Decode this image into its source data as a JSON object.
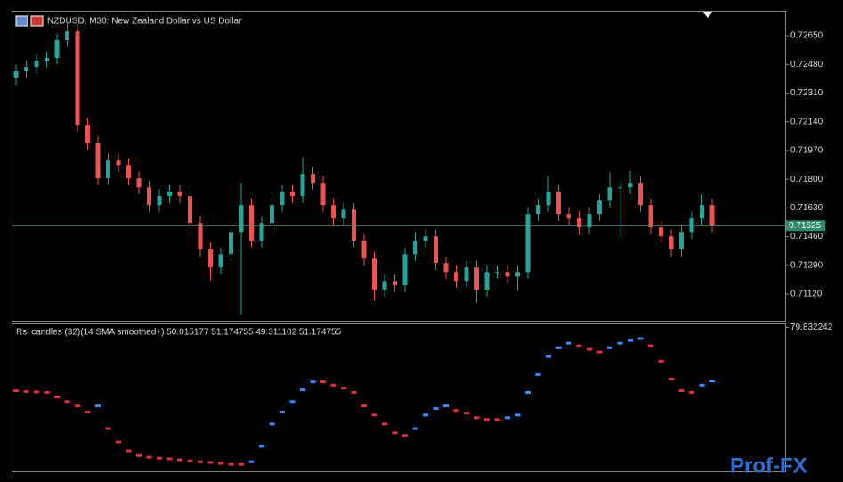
{
  "chart_data": [
    {
      "type": "candlestick",
      "title": "NZDUSD, M30:  New Zealand Dollar vs US Dollar",
      "open": [
        0.724,
        0.72439,
        0.72465,
        0.72502,
        0.72518,
        0.72624,
        0.72676,
        0.72122,
        0.72016,
        0.71805,
        0.71911,
        0.71884,
        0.71805,
        0.71752,
        0.71647,
        0.717,
        0.71726,
        0.717,
        0.71541,
        0.71383,
        0.71277,
        0.71356,
        0.71488,
        0.71647,
        0.71436,
        0.71541,
        0.71647,
        0.71726,
        0.717,
        0.71832,
        0.71779,
        0.71647,
        0.71568,
        0.7162,
        0.71436,
        0.7133,
        0.71145,
        0.71198,
        0.71172,
        0.71356,
        0.71436,
        0.71462,
        0.71304,
        0.71251,
        0.71198,
        0.71277,
        0.71145,
        0.71251,
        0.71251,
        0.71224,
        0.71251,
        0.71594,
        0.71647,
        0.71726,
        0.71594,
        0.71568,
        0.71515,
        0.71594,
        0.71673,
        0.71752,
        0.71752,
        0.71779,
        0.71647,
        0.71515,
        0.71462,
        0.71383,
        0.71488,
        0.71568,
        0.71647
      ],
      "high": [
        0.72479,
        0.72505,
        0.72542,
        0.72558,
        0.72664,
        0.7272,
        0.72716,
        0.72162,
        0.72056,
        0.71951,
        0.71951,
        0.71924,
        0.71845,
        0.71792,
        0.7174,
        0.71766,
        0.71766,
        0.7174,
        0.71581,
        0.71423,
        0.71396,
        0.71528,
        0.7178,
        0.71687,
        0.71581,
        0.71687,
        0.71766,
        0.71766,
        0.7193,
        0.71872,
        0.71819,
        0.71687,
        0.7166,
        0.7166,
        0.71476,
        0.7137,
        0.71238,
        0.71238,
        0.71396,
        0.7149,
        0.71502,
        0.71502,
        0.71344,
        0.71291,
        0.71317,
        0.71317,
        0.71291,
        0.71291,
        0.71291,
        0.71291,
        0.71634,
        0.71687,
        0.7182,
        0.71766,
        0.71634,
        0.71608,
        0.71634,
        0.71713,
        0.7184,
        0.71792,
        0.7185,
        0.71819,
        0.71687,
        0.71555,
        0.71502,
        0.71528,
        0.71608,
        0.7171,
        0.71687
      ],
      "low": [
        0.7236,
        0.72399,
        0.72425,
        0.72462,
        0.72478,
        0.72584,
        0.72082,
        0.71976,
        0.71765,
        0.71765,
        0.71844,
        0.71765,
        0.71712,
        0.71607,
        0.71607,
        0.7166,
        0.7166,
        0.71501,
        0.71343,
        0.712,
        0.71237,
        0.71316,
        0.71,
        0.71396,
        0.71396,
        0.71501,
        0.71607,
        0.7166,
        0.7166,
        0.71739,
        0.71607,
        0.71528,
        0.71528,
        0.71396,
        0.7129,
        0.7108,
        0.71105,
        0.71132,
        0.71132,
        0.71316,
        0.71396,
        0.71264,
        0.71211,
        0.71158,
        0.71158,
        0.7107,
        0.71105,
        0.71211,
        0.71184,
        0.7114,
        0.71211,
        0.71554,
        0.71607,
        0.71554,
        0.71528,
        0.71475,
        0.71475,
        0.71554,
        0.71633,
        0.7145,
        0.71712,
        0.71607,
        0.71475,
        0.71422,
        0.71343,
        0.71343,
        0.71448,
        0.71528,
        0.71485
      ],
      "close": [
        0.72439,
        0.72465,
        0.72502,
        0.72518,
        0.72624,
        0.72676,
        0.72122,
        0.72016,
        0.71805,
        0.71911,
        0.71884,
        0.71805,
        0.71752,
        0.71647,
        0.717,
        0.71726,
        0.717,
        0.71541,
        0.71383,
        0.71277,
        0.71356,
        0.71488,
        0.71647,
        0.71436,
        0.71541,
        0.71647,
        0.71726,
        0.717,
        0.71832,
        0.71779,
        0.71647,
        0.71568,
        0.7162,
        0.71436,
        0.7133,
        0.71145,
        0.71198,
        0.71172,
        0.71356,
        0.71436,
        0.71462,
        0.71304,
        0.71251,
        0.71198,
        0.71277,
        0.71145,
        0.71251,
        0.71251,
        0.71224,
        0.71251,
        0.71594,
        0.71647,
        0.71726,
        0.71594,
        0.71568,
        0.71515,
        0.71594,
        0.71673,
        0.71752,
        0.71752,
        0.71779,
        0.71647,
        0.71515,
        0.71462,
        0.71383,
        0.71488,
        0.71568,
        0.71647,
        0.71525
      ],
      "up_color": "#26a69a",
      "down_color": "#ef5350",
      "ylim": [
        0.70962,
        0.72798
      ],
      "yticks": [
        {
          "value": 0.7265,
          "label": "0.72650"
        },
        {
          "value": 0.7248,
          "label": "0.72480"
        },
        {
          "value": 0.7231,
          "label": "0.72310"
        },
        {
          "value": 0.7214,
          "label": "0.72140"
        },
        {
          "value": 0.7197,
          "label": "0.71970"
        },
        {
          "value": 0.718,
          "label": "0.71800"
        },
        {
          "value": 0.7163,
          "label": "0.71630"
        },
        {
          "value": 0.7146,
          "label": "0.71460"
        },
        {
          "value": 0.7129,
          "label": "0.71290"
        },
        {
          "value": 0.7112,
          "label": "0.71120"
        }
      ],
      "last_price": {
        "value": 0.71525,
        "label": "0.71525"
      }
    },
    {
      "type": "line",
      "title": "Rsi candles (32)(14 SMA smoothed+) 50.015177 51.174755 49.311102 51.174755",
      "values": [
        53.5,
        53.2,
        53.0,
        52.8,
        50.9,
        49.0,
        47.2,
        44.6,
        47.2,
        37.8,
        32.2,
        28.5,
        26.6,
        25.9,
        25.5,
        25.2,
        24.8,
        24.4,
        24.0,
        23.7,
        23.3,
        22.9,
        22.9,
        24.0,
        30.4,
        39.7,
        44.6,
        49.0,
        53.9,
        57.2,
        57.2,
        55.8,
        54.6,
        52.8,
        47.2,
        43.4,
        39.7,
        36.0,
        34.9,
        37.8,
        43.4,
        46.1,
        47.2,
        45.3,
        44.2,
        42.3,
        41.6,
        41.6,
        42.3,
        43.4,
        52.8,
        60.2,
        67.7,
        71.4,
        73.3,
        72.2,
        70.7,
        69.6,
        71.4,
        73.3,
        74.4,
        75.2,
        72.2,
        65.8,
        58.4,
        53.5,
        52.8,
        55.8,
        57.6
      ],
      "up_color": "#3d8bfd",
      "down_color": "#e0303c",
      "ylim": [
        20,
        81.5
      ],
      "yticks": [
        79.832242
      ]
    }
  ],
  "watermark": "Prof-FX"
}
